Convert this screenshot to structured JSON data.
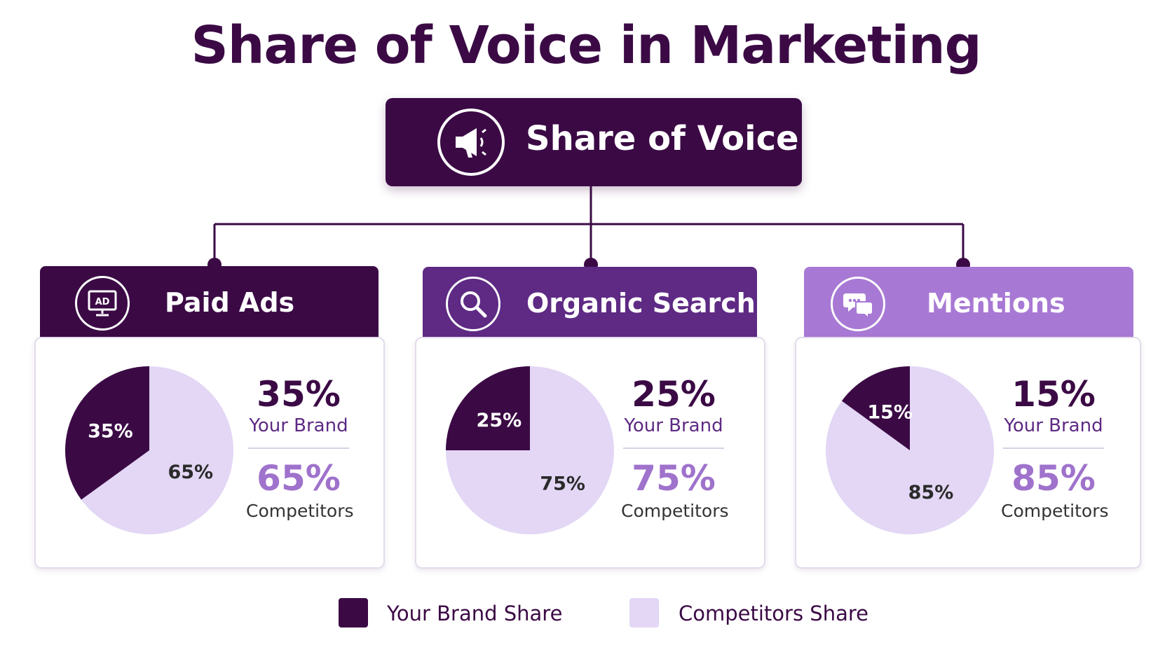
{
  "title": "Share of Voice in Marketing",
  "root": {
    "label": "Share of Voice",
    "icon": "megaphone-icon"
  },
  "colors": {
    "brand": "#3b0a45",
    "competitors": "#e3d7f5",
    "header_paid": "#3b0a45",
    "header_organic": "#5e2a84",
    "header_mentions": "#a879d4",
    "competitor_text": "#9f72cc"
  },
  "chart_data": [
    {
      "type": "pie",
      "title": "Paid Ads",
      "icon": "ad-monitor-icon",
      "slices": [
        {
          "label": "Your Brand",
          "value": 35,
          "display": "35%"
        },
        {
          "label": "Competitors",
          "value": 65,
          "display": "65%"
        }
      ]
    },
    {
      "type": "pie",
      "title": "Organic Search",
      "icon": "search-icon",
      "slices": [
        {
          "label": "Your Brand",
          "value": 25,
          "display": "25%"
        },
        {
          "label": "Competitors",
          "value": 75,
          "display": "75%"
        }
      ]
    },
    {
      "type": "pie",
      "title": "Mentions",
      "icon": "chat-bubbles-icon",
      "slices": [
        {
          "label": "Your Brand",
          "value": 15,
          "display": "15%"
        },
        {
          "label": "Competitors",
          "value": 85,
          "display": "85%"
        }
      ]
    }
  ],
  "legend": [
    {
      "label": "Your Brand Share",
      "color": "#3b0a45"
    },
    {
      "label": "Competitors Share",
      "color": "#e3d7f5"
    }
  ]
}
